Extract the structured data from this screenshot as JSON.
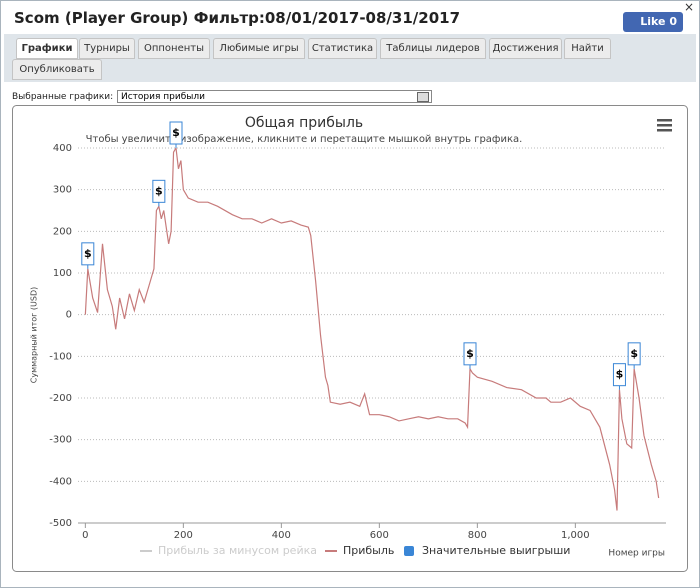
{
  "window": {
    "title": "Scom (Player Group) Фильтр:08/01/2017-08/31/2017",
    "close": "×",
    "like": "Like 0"
  },
  "tabs": [
    "Графики",
    "Турниры",
    "Оппоненты",
    "Любимые игры",
    "Статистика",
    "Таблицы лидеров",
    "Достижения",
    "Найти",
    "Опубликовать"
  ],
  "selector": {
    "label": "Выбранные графики:",
    "value": "История прибыли"
  },
  "chart_data": {
    "type": "line",
    "title": "Общая прибыль",
    "subtitle": "Чтобы увеличить изображение, кликните и перетащите мышкой внутрь графика.",
    "y_label": "Суммарный итог (USD)",
    "x_label": "Номер игры",
    "xlim": [
      -15,
      1185
    ],
    "xticks": [
      0,
      200,
      400,
      600,
      800,
      {
        "value": 1000,
        "label": "1,000"
      }
    ],
    "ylim": [
      -500,
      400
    ],
    "yticks": [
      400,
      300,
      200,
      100,
      0,
      -100,
      -200,
      -300,
      -400,
      -500
    ],
    "grid": true,
    "series": [
      {
        "name": "Прибыль за минусом рейка",
        "color": "#cccccc",
        "visible": false
      },
      {
        "name": "Прибыль",
        "color": "#c77b7b",
        "x": [
          0,
          5,
          15,
          25,
          35,
          45,
          55,
          62,
          70,
          80,
          90,
          100,
          110,
          120,
          130,
          140,
          145,
          150,
          155,
          160,
          170,
          175,
          180,
          185,
          190,
          195,
          200,
          210,
          230,
          250,
          270,
          300,
          320,
          340,
          360,
          380,
          400,
          420,
          440,
          455,
          460,
          470,
          480,
          490,
          495,
          500,
          520,
          540,
          560,
          570,
          580,
          600,
          620,
          640,
          660,
          680,
          700,
          720,
          740,
          760,
          775,
          780,
          785,
          790,
          800,
          830,
          860,
          890,
          920,
          940,
          950,
          970,
          990,
          1010,
          1030,
          1050,
          1070,
          1080,
          1085,
          1090,
          1095,
          1105,
          1115,
          1120,
          1130,
          1140,
          1155,
          1165,
          1170
        ],
        "values": [
          0,
          110,
          40,
          5,
          170,
          60,
          20,
          -35,
          40,
          -10,
          50,
          10,
          60,
          30,
          70,
          110,
          250,
          260,
          230,
          250,
          170,
          200,
          390,
          400,
          350,
          370,
          300,
          280,
          270,
          270,
          260,
          240,
          230,
          230,
          220,
          230,
          220,
          225,
          215,
          210,
          190,
          80,
          -50,
          -150,
          -170,
          -210,
          -215,
          -210,
          -220,
          -190,
          -240,
          -240,
          -245,
          -255,
          -250,
          -245,
          -250,
          -245,
          -250,
          -250,
          -260,
          -270,
          -130,
          -140,
          -150,
          -160,
          -175,
          -180,
          -200,
          -200,
          -210,
          -210,
          -200,
          -220,
          -230,
          -270,
          -360,
          -420,
          -470,
          -180,
          -250,
          -310,
          -320,
          -130,
          -200,
          -290,
          -360,
          -400,
          -440
        ]
      },
      {
        "name": "Значительные выигрыши",
        "color": "#3a86d6",
        "marker_label": "$",
        "x": [
          5,
          150,
          185,
          785,
          1090,
          1120
        ],
        "values": [
          110,
          260,
          400,
          -130,
          -180,
          -130
        ]
      }
    ]
  }
}
